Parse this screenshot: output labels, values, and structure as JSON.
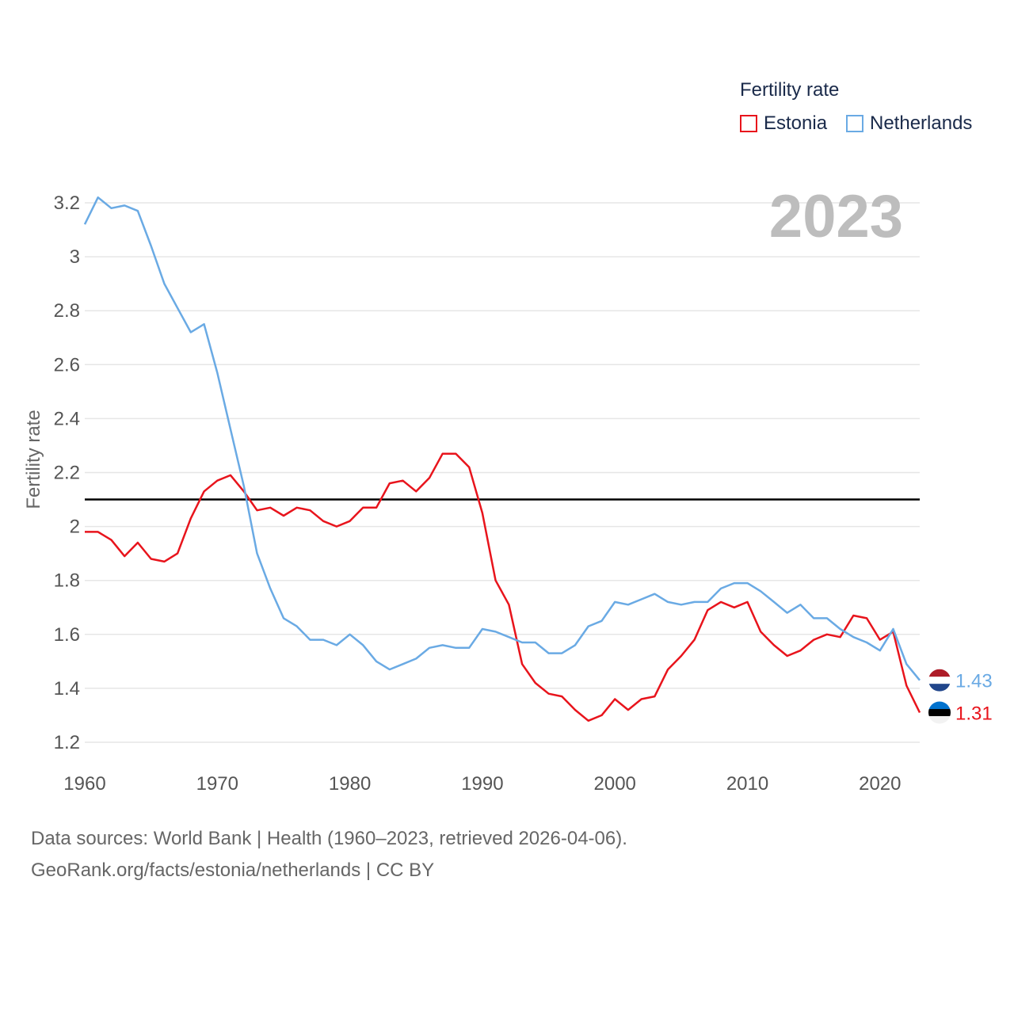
{
  "legend": {
    "title": "Fertility rate",
    "items": [
      {
        "label": "Estonia",
        "color": "#e8141c"
      },
      {
        "label": "Netherlands",
        "color": "#6aaae4"
      }
    ]
  },
  "footer": {
    "line1": "Data sources: World Bank | Health (1960–2023, retrieved 2026-04-06).",
    "line2": "GeoRank.org/facts/estonia/netherlands | CC BY"
  },
  "chart_data": {
    "type": "line",
    "title": "Fertility rate",
    "year_label": "2023",
    "ylabel": "Fertility rate",
    "xlabel": "",
    "xlim": [
      1960,
      2023
    ],
    "ylim": [
      1.2,
      3.2
    ],
    "x_ticks": [
      "1960",
      "1970",
      "1980",
      "1990",
      "2000",
      "2010",
      "2020"
    ],
    "y_ticks": [
      "1.2",
      "1.4",
      "1.6",
      "1.8",
      "2",
      "2.2",
      "2.4",
      "2.6",
      "2.8",
      "3",
      "3.2"
    ],
    "reference_line": {
      "y": 2.1,
      "color": "#000000"
    },
    "x": [
      1960,
      1961,
      1962,
      1963,
      1964,
      1965,
      1966,
      1967,
      1968,
      1969,
      1970,
      1971,
      1972,
      1973,
      1974,
      1975,
      1976,
      1977,
      1978,
      1979,
      1980,
      1981,
      1982,
      1983,
      1984,
      1985,
      1986,
      1987,
      1988,
      1989,
      1990,
      1991,
      1992,
      1993,
      1994,
      1995,
      1996,
      1997,
      1998,
      1999,
      2000,
      2001,
      2002,
      2003,
      2004,
      2005,
      2006,
      2007,
      2008,
      2009,
      2010,
      2011,
      2012,
      2013,
      2014,
      2015,
      2016,
      2017,
      2018,
      2019,
      2020,
      2021,
      2022,
      2023
    ],
    "series": [
      {
        "name": "Estonia",
        "color": "#e8141c",
        "end_label": "1.31",
        "values": [
          1.98,
          1.98,
          1.95,
          1.89,
          1.94,
          1.88,
          1.87,
          1.9,
          2.03,
          2.13,
          2.17,
          2.19,
          2.13,
          2.06,
          2.07,
          2.04,
          2.07,
          2.06,
          2.02,
          2.0,
          2.02,
          2.07,
          2.07,
          2.16,
          2.17,
          2.13,
          2.18,
          2.27,
          2.27,
          2.22,
          2.05,
          1.8,
          1.71,
          1.49,
          1.42,
          1.38,
          1.37,
          1.32,
          1.28,
          1.3,
          1.36,
          1.32,
          1.36,
          1.37,
          1.47,
          1.52,
          1.58,
          1.69,
          1.72,
          1.7,
          1.72,
          1.61,
          1.56,
          1.52,
          1.54,
          1.58,
          1.6,
          1.59,
          1.67,
          1.66,
          1.58,
          1.61,
          1.41,
          1.31
        ]
      },
      {
        "name": "Netherlands",
        "color": "#6aaae4",
        "end_label": "1.43",
        "values": [
          3.12,
          3.22,
          3.18,
          3.19,
          3.17,
          3.04,
          2.9,
          2.81,
          2.72,
          2.75,
          2.57,
          2.36,
          2.15,
          1.9,
          1.77,
          1.66,
          1.63,
          1.58,
          1.58,
          1.56,
          1.6,
          1.56,
          1.5,
          1.47,
          1.49,
          1.51,
          1.55,
          1.56,
          1.55,
          1.55,
          1.62,
          1.61,
          1.59,
          1.57,
          1.57,
          1.53,
          1.53,
          1.56,
          1.63,
          1.65,
          1.72,
          1.71,
          1.73,
          1.75,
          1.72,
          1.71,
          1.72,
          1.72,
          1.77,
          1.79,
          1.79,
          1.76,
          1.72,
          1.68,
          1.71,
          1.66,
          1.66,
          1.62,
          1.59,
          1.57,
          1.54,
          1.62,
          1.49,
          1.43
        ]
      }
    ]
  }
}
